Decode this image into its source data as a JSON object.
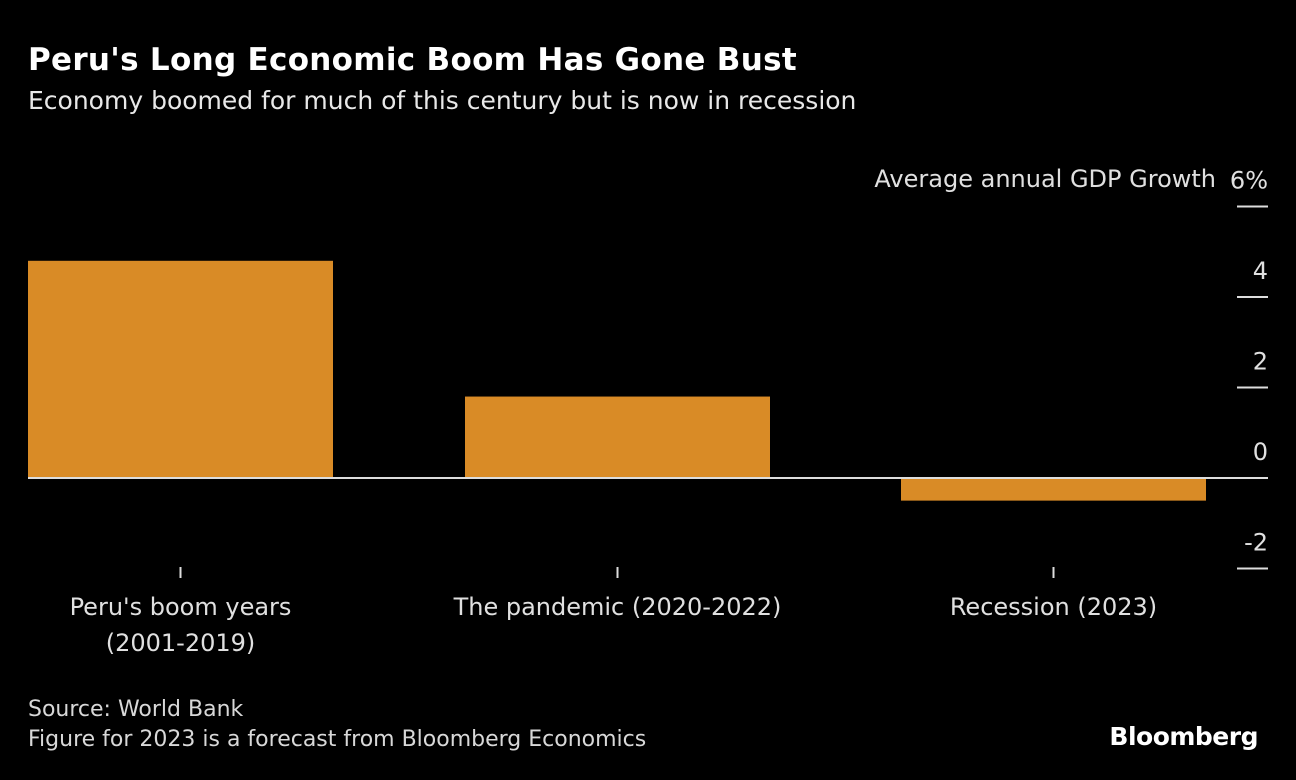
{
  "title": "Peru's Long Economic Boom Has Gone Bust",
  "subtitle": "Economy boomed for much of this century but is now in recession",
  "source": "Source: World Bank",
  "note": "Figure for 2023 is a forecast from Bloomberg Economics",
  "logo": "Bloomberg",
  "chart_data": {
    "type": "bar",
    "categories": [
      [
        "Peru's boom years",
        "(2001-2019)"
      ],
      [
        "The pandemic (2020-2022)"
      ],
      [
        "Recession (2023)"
      ]
    ],
    "values": [
      4.8,
      1.8,
      -0.5
    ],
    "ylabel": "Average annual GDP Growth",
    "ylim": [
      -2,
      6
    ],
    "yticks": [
      6,
      4,
      2,
      0,
      -2
    ],
    "ytick_labels": [
      "6%",
      "4",
      "2",
      "0",
      "-2"
    ],
    "y_axis_position": "right",
    "grid": false,
    "bar_color": "#d98b26",
    "background": "#000000"
  }
}
